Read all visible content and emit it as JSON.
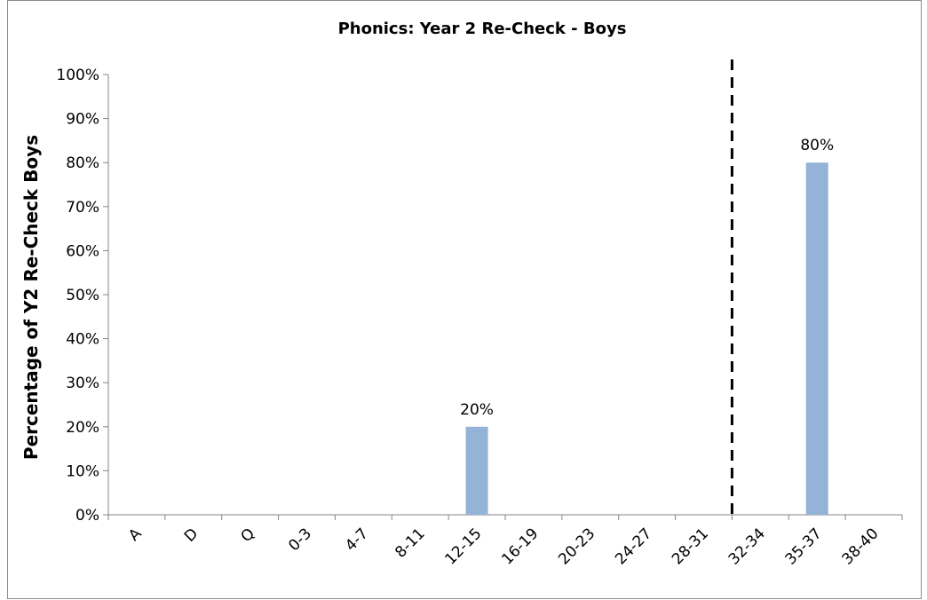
{
  "chart_data": {
    "type": "bar",
    "title": "Phonics: Year 2 Re-Check - Boys",
    "ylabel": "Percentage of Y2 Re-Check Boys",
    "xlabel": "",
    "categories": [
      "A",
      "D",
      "Q",
      "0-3",
      "4-7",
      "8-11",
      "12-15",
      "16-19",
      "20-23",
      "24-27",
      "28-31",
      "32-34",
      "35-37",
      "38-40"
    ],
    "values": [
      0,
      0,
      0,
      0,
      0,
      0,
      20,
      0,
      0,
      0,
      0,
      0,
      80,
      0
    ],
    "data_labels": [
      "",
      "",
      "",
      "",
      "",
      "",
      "20%",
      "",
      "",
      "",
      "",
      "",
      "80%",
      ""
    ],
    "ylim": [
      0,
      100
    ],
    "y_ticks": [
      "0%",
      "10%",
      "20%",
      "30%",
      "40%",
      "50%",
      "60%",
      "70%",
      "80%",
      "90%",
      "100%"
    ],
    "y_tick_values": [
      0,
      10,
      20,
      30,
      40,
      50,
      60,
      70,
      80,
      90,
      100
    ],
    "grid": false,
    "legend": "none",
    "bar_color": "#95b3d7",
    "threshold_line": {
      "style": "dashed",
      "color": "#000000",
      "between_categories": [
        "28-31",
        "32-34"
      ]
    }
  }
}
